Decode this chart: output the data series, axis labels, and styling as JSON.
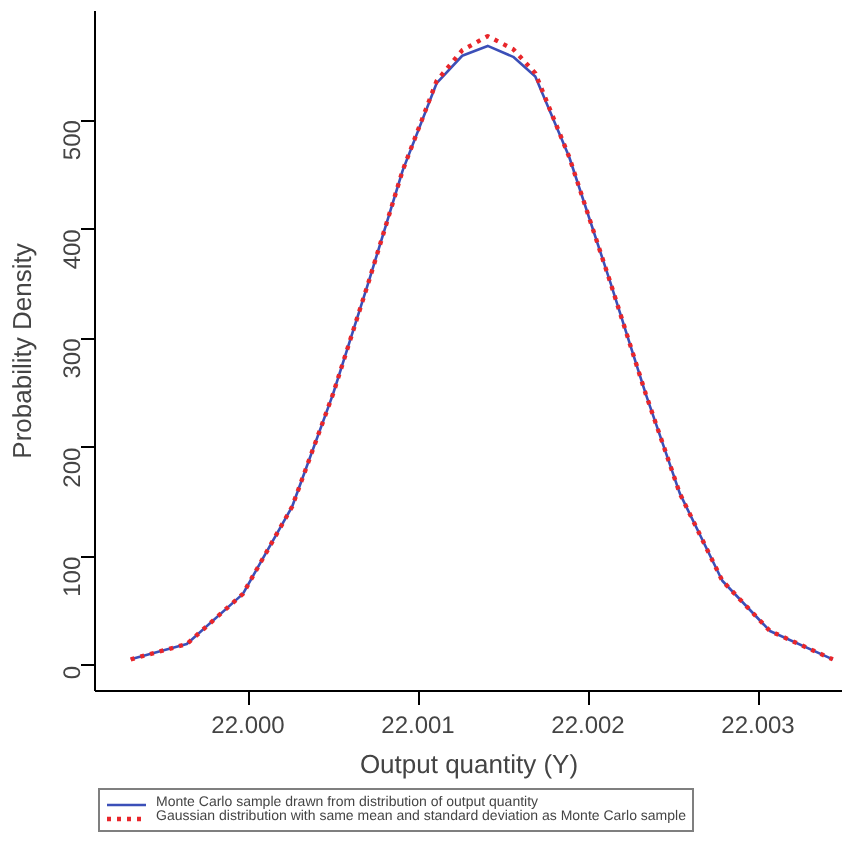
{
  "chart_data": {
    "type": "line",
    "xlabel": "Output quantity (Y)",
    "ylabel": "Probability Density",
    "xlim": [
      21.9991,
      22.0035
    ],
    "ylim": [
      -23,
      600
    ],
    "xticks": [
      {
        "value": 22.0,
        "label": "22.000"
      },
      {
        "value": 22.001,
        "label": "22.001"
      },
      {
        "value": 22.002,
        "label": "22.002"
      },
      {
        "value": 22.003,
        "label": "22.003"
      }
    ],
    "yticks": [
      0,
      100,
      200,
      300,
      400,
      500
    ],
    "grid": false,
    "legend": "bottom left",
    "marker": "none",
    "series": [
      {
        "name": "Monte Carlo sample drawn from distribution of output quantity",
        "color": "#3b4fb8",
        "line_style": "solid",
        "x": [
          21.99931,
          21.99964,
          21.99997,
          22.00026,
          22.0005,
          22.00071,
          22.00091,
          22.00111,
          22.00126,
          22.00141,
          22.00156,
          22.00169,
          22.00189,
          22.00213,
          22.00234,
          22.00254,
          22.00279,
          22.00307,
          22.00344
        ],
        "values": [
          6,
          20,
          66,
          146,
          249,
          352,
          454,
          534,
          559,
          568,
          558,
          540,
          466,
          352,
          249,
          158,
          78,
          32,
          6
        ]
      },
      {
        "name": "Gaussian distribution with same mean and standard deviation as Monte Carlo sample",
        "color": "#e8262b",
        "line_style": "dotted",
        "x": [
          21.99931,
          21.99964,
          21.99997,
          22.00026,
          22.0005,
          22.00071,
          22.00091,
          22.00111,
          22.00126,
          22.00141,
          22.00156,
          22.00169,
          22.00189,
          22.00213,
          22.00234,
          22.00254,
          22.00279,
          22.00307,
          22.00344
        ],
        "values": [
          6,
          20,
          66,
          146,
          249,
          352,
          454,
          536,
          564,
          577,
          565,
          543,
          466,
          352,
          249,
          158,
          78,
          32,
          6
        ]
      }
    ]
  }
}
